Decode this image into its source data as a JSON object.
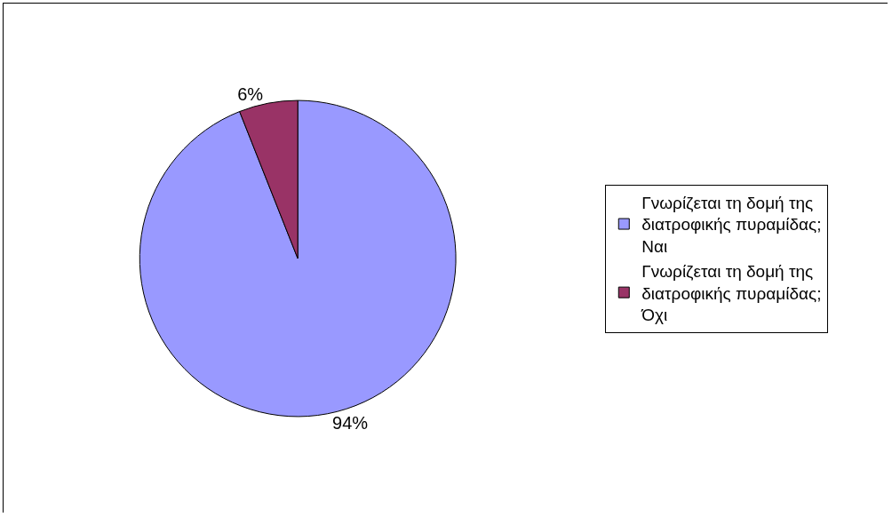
{
  "chart_data": {
    "type": "pie",
    "categories": [
      "Γνωρίζεται τη δομή της διατροφικής πυραμίδας; Ναι",
      "Γνωρίζεται τη δομή της διατροφικής πυραμίδας; Όχι"
    ],
    "values": [
      94,
      6
    ],
    "colors": [
      "#9999ff",
      "#993366"
    ],
    "value_labels": [
      "94%",
      "6%"
    ],
    "legend": "right"
  }
}
